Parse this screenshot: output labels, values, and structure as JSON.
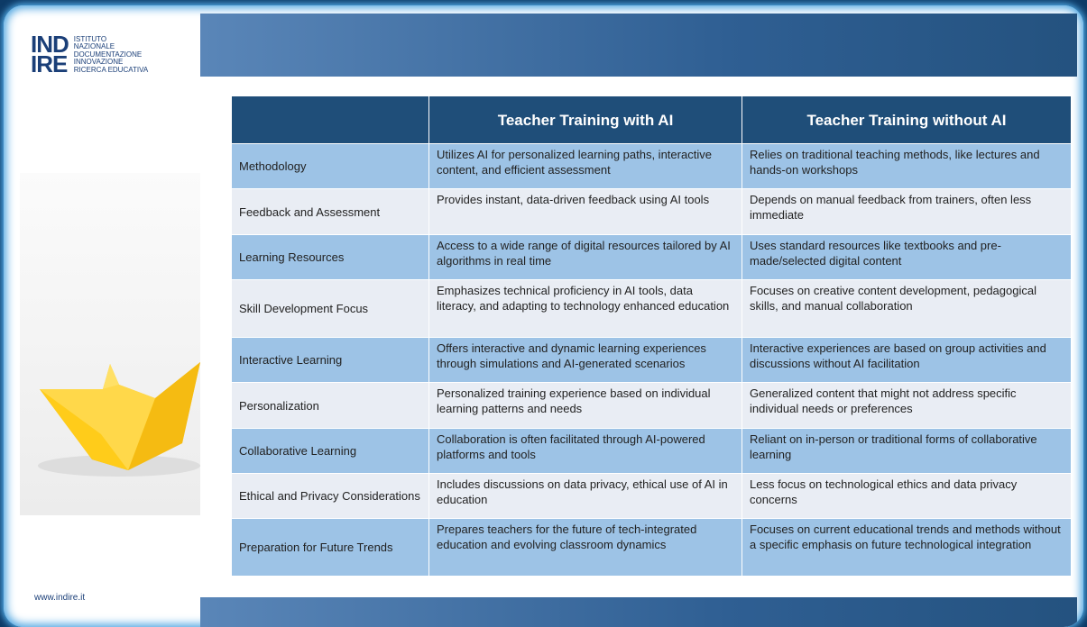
{
  "logo": {
    "mark": [
      "IND",
      "IRE"
    ],
    "lines": [
      "ISTITUTO",
      "NAZIONALE",
      "DOCUMENTAZIONE",
      "INNOVAZIONE",
      "RICERCA EDUCATIVA"
    ]
  },
  "table": {
    "columns": [
      "Teacher Training with AI",
      "Teacher Training without AI"
    ],
    "rows": [
      [
        "Methodology",
        "Utilizes AI for personalized learning paths, interactive content, and efficient assessment",
        "Relies on traditional teaching methods, like lectures and hands-on workshops"
      ],
      [
        "Feedback and Assessment",
        "Provides instant, data-driven feedback using AI tools",
        "Depends on manual feedback from trainers, often less immediate"
      ],
      [
        "Learning Resources",
        "Access to a wide range of digital resources tailored by AI algorithms in real time",
        "Uses standard resources like textbooks and pre-made/selected digital content"
      ],
      [
        "Skill Development Focus",
        "Emphasizes technical proficiency in AI tools, data literacy, and adapting to technology enhanced education",
        "Focuses on creative content development, pedagogical skills, and manual collaboration"
      ],
      [
        "Interactive Learning",
        "Offers interactive and dynamic learning experiences through simulations and AI-generated scenarios",
        "Interactive experiences are based on group activities and discussions without AI facilitation"
      ],
      [
        "Personalization",
        "Personalized training experience based on individual learning patterns and needs",
        "Generalized content that might not address specific individual needs or preferences"
      ],
      [
        "Collaborative Learning",
        "Collaboration is often facilitated through AI-powered platforms and tools",
        "Reliant on in-person or traditional forms of collaborative learning"
      ],
      [
        "Ethical and Privacy Considerations",
        "Includes discussions on data privacy, ethical use of AI in education",
        "Less focus on technological ethics and data privacy concerns"
      ],
      [
        "Preparation for Future Trends",
        "Prepares teachers for the future of tech-integrated education and evolving classroom dynamics",
        "Focuses on current educational trends and methods without a specific emphasis on future technological integration"
      ]
    ]
  },
  "footer": {
    "url": "www.indire.it"
  }
}
